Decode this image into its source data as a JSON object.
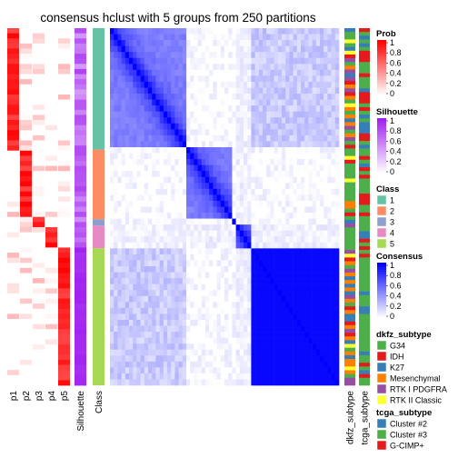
{
  "chart_data": {
    "type": "heatmap",
    "title": "consensus hclust with 5 groups from 250 partitions",
    "n_groups": 5,
    "left_columns": [
      "p1",
      "p2",
      "p3",
      "p4",
      "p5",
      "Silhouette",
      "Class"
    ],
    "right_columns": [
      "dkfz_subtype",
      "tcga_subtype"
    ],
    "groups": [
      {
        "class": "1",
        "size": 0.34
      },
      {
        "class": "2",
        "size": 0.195
      },
      {
        "class": "3",
        "size": 0.018
      },
      {
        "class": "4",
        "size": 0.063
      },
      {
        "class": "5",
        "size": 0.384
      }
    ],
    "legends": {
      "prob": {
        "title": "Prob",
        "ticks": [
          "1",
          "0.8",
          "0.6",
          "0.4",
          "0.2",
          "0"
        ]
      },
      "silhouette": {
        "title": "Silhouette",
        "ticks": [
          "1",
          "0.8",
          "0.6",
          "0.4",
          "0.2",
          "0"
        ]
      },
      "class": {
        "title": "Class",
        "items": [
          {
            "label": "1",
            "color": "#66C2A5"
          },
          {
            "label": "2",
            "color": "#FC8D62"
          },
          {
            "label": "3",
            "color": "#8DA0CB"
          },
          {
            "label": "4",
            "color": "#E78AC3"
          },
          {
            "label": "5",
            "color": "#A6D854"
          }
        ]
      },
      "consensus": {
        "title": "Consensus",
        "ticks": [
          "1",
          "0.8",
          "0.6",
          "0.4",
          "0.2",
          "0"
        ]
      },
      "dkfz_subtype": {
        "title": "dkfz_subtype",
        "items": [
          {
            "label": "G34",
            "color": "#4DAF4A"
          },
          {
            "label": "IDH",
            "color": "#E41A1C"
          },
          {
            "label": "K27",
            "color": "#377EB8"
          },
          {
            "label": "Mesenchymal",
            "color": "#FF7F00"
          },
          {
            "label": "RTK I PDGFRA",
            "color": "#984EA3"
          },
          {
            "label": "RTK II Classic",
            "color": "#FFFF33"
          }
        ]
      },
      "tcga_subtype": {
        "title": "tcga_subtype",
        "items": [
          {
            "label": "Cluster #2",
            "color": "#377EB8"
          },
          {
            "label": "Cluster #3",
            "color": "#4DAF4A"
          },
          {
            "label": "G-CIMP+",
            "color": "#E41A1C"
          }
        ]
      }
    },
    "colors": {
      "prob_high": "#FF0000",
      "silhouette_high": "#A020F0",
      "consensus_high": "#0000FF"
    }
  }
}
